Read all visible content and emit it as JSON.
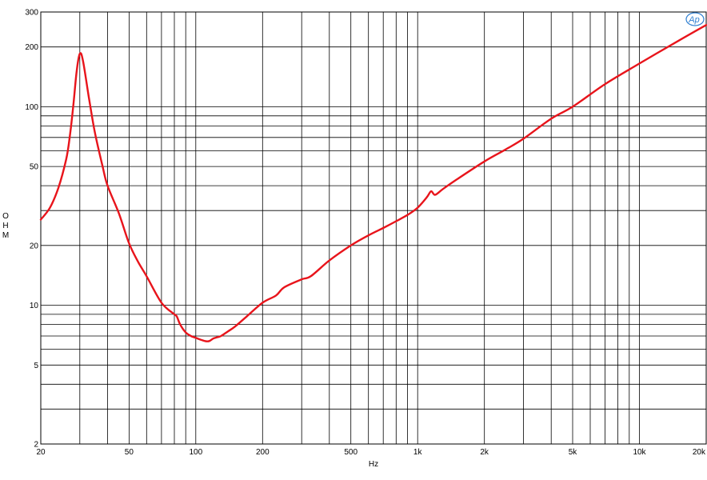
{
  "chart_data": {
    "type": "line",
    "title": "",
    "xlabel": "Hz",
    "ylabel": "OHM",
    "x_scale": "log",
    "y_scale": "log",
    "xlim": [
      20,
      20000
    ],
    "ylim": [
      2,
      300
    ],
    "grid": true,
    "x_ticks": [
      {
        "value": 20,
        "label": "20"
      },
      {
        "value": 50,
        "label": "50"
      },
      {
        "value": 100,
        "label": "100"
      },
      {
        "value": 200,
        "label": "200"
      },
      {
        "value": 500,
        "label": "500"
      },
      {
        "value": 1000,
        "label": "1k"
      },
      {
        "value": 2000,
        "label": "2k"
      },
      {
        "value": 5000,
        "label": "5k"
      },
      {
        "value": 10000,
        "label": "10k"
      },
      {
        "value": 20000,
        "label": "20k"
      }
    ],
    "y_ticks": [
      {
        "value": 2,
        "label": "2"
      },
      {
        "value": 5,
        "label": "5"
      },
      {
        "value": 10,
        "label": "10"
      },
      {
        "value": 20,
        "label": "20"
      },
      {
        "value": 50,
        "label": "50"
      },
      {
        "value": 100,
        "label": "100"
      },
      {
        "value": 200,
        "label": "200"
      },
      {
        "value": 300,
        "label": "300"
      }
    ],
    "x_gridlines": [
      20,
      30,
      40,
      50,
      60,
      70,
      80,
      90,
      100,
      200,
      300,
      400,
      500,
      600,
      700,
      800,
      900,
      1000,
      2000,
      3000,
      4000,
      5000,
      6000,
      7000,
      8000,
      9000,
      10000,
      20000
    ],
    "y_gridlines": [
      2,
      3,
      4,
      5,
      6,
      7,
      8,
      9,
      10,
      20,
      30,
      40,
      50,
      60,
      70,
      80,
      90,
      100,
      200,
      300
    ],
    "series": [
      {
        "color": "#e8141b",
        "x": [
          20,
          22,
          24,
          26,
          27,
          28,
          29,
          30,
          31,
          33,
          35,
          38,
          40,
          45,
          50,
          55,
          60,
          70,
          80,
          82,
          85,
          90,
          95,
          100,
          110,
          115,
          120,
          125,
          130,
          140,
          150,
          170,
          200,
          230,
          250,
          300,
          330,
          400,
          500,
          600,
          700,
          800,
          900,
          1000,
          1100,
          1150,
          1200,
          1300,
          1500,
          2000,
          2500,
          3000,
          4000,
          5000,
          7000,
          10000,
          15000,
          20000
        ],
        "y": [
          27,
          31,
          39,
          54,
          70,
          100,
          150,
          185,
          170,
          110,
          75,
          50,
          40,
          29,
          20.5,
          16.5,
          14,
          10.3,
          9.0,
          8.8,
          8.0,
          7.3,
          7.0,
          6.85,
          6.6,
          6.6,
          6.8,
          6.9,
          7.0,
          7.4,
          7.8,
          8.8,
          10.3,
          11.2,
          12.3,
          13.5,
          14.0,
          16.8,
          20.0,
          22.5,
          24.5,
          26.5,
          28.5,
          31.0,
          35.0,
          37.5,
          36.0,
          38.5,
          43.0,
          53.0,
          61.0,
          69.0,
          87.0,
          100.0,
          130.0,
          165.0,
          215.0,
          258.0
        ]
      }
    ]
  },
  "logo": {
    "text": "Ap",
    "color": "#2f7fd1"
  }
}
